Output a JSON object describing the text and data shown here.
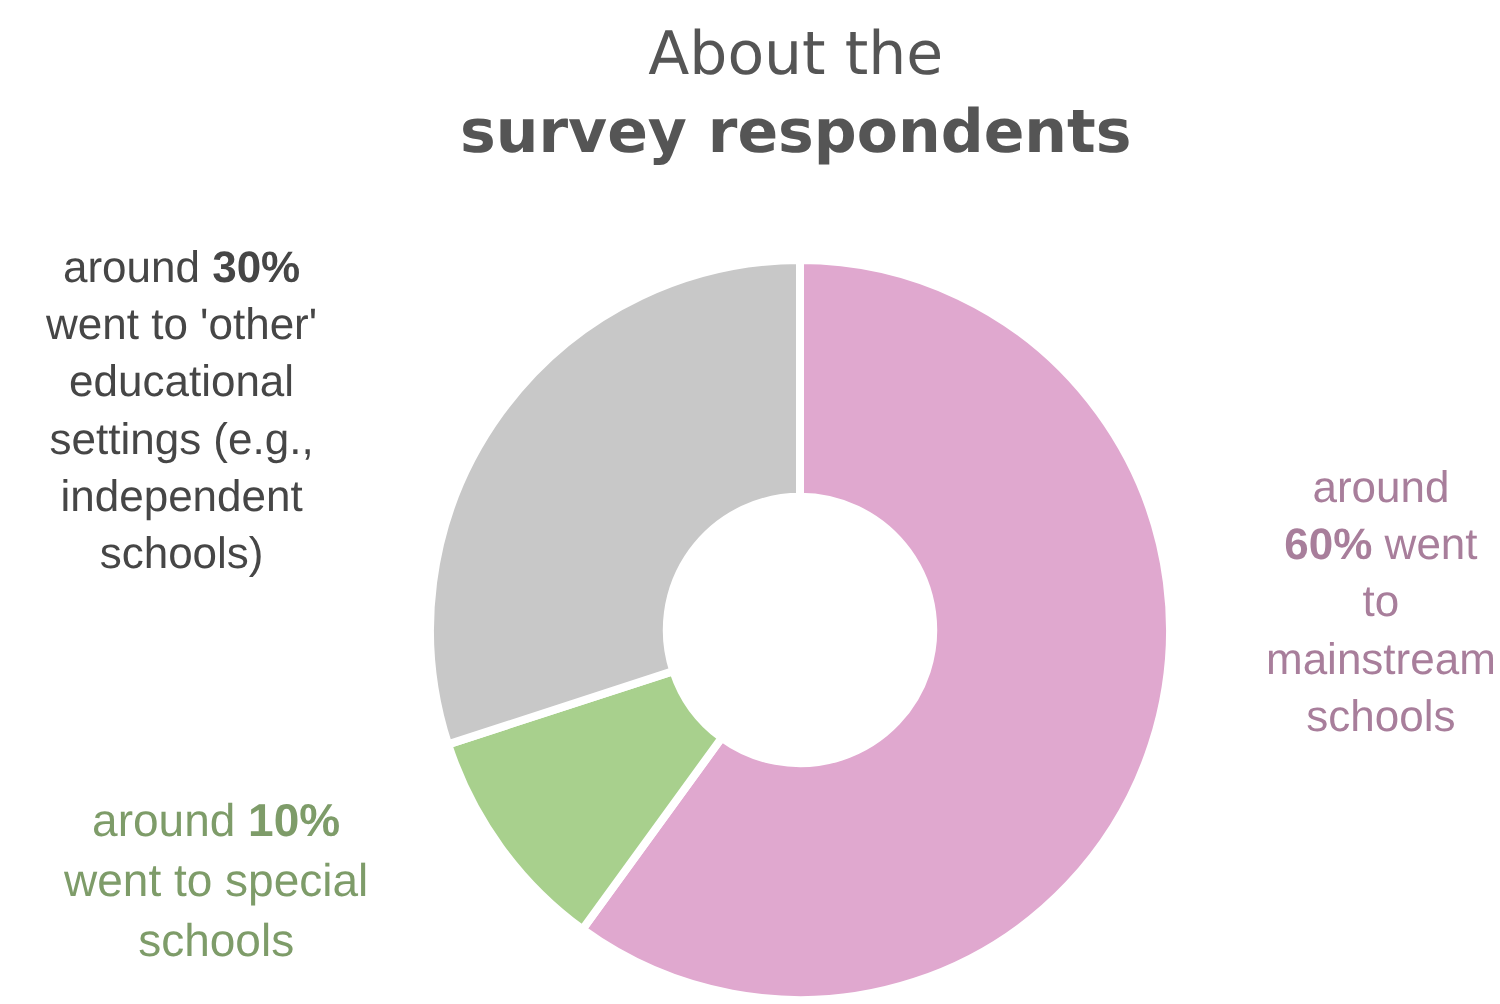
{
  "chart_data": {
    "type": "donut",
    "title": "About the\nsurvey respondents",
    "categories": [
      "around\n60% went\nto\nmainstream\nschools",
      "around 10%\nwent to special\nschools",
      "around 30%\nwent to 'other'\neducational\nsettings (e.g.,\nindependent\nschools)"
    ],
    "values": [
      60,
      10,
      30
    ],
    "colors": [
      "#e0a8cf",
      "#a8d08d",
      "#c8c8c8"
    ],
    "legend": false
  }
}
